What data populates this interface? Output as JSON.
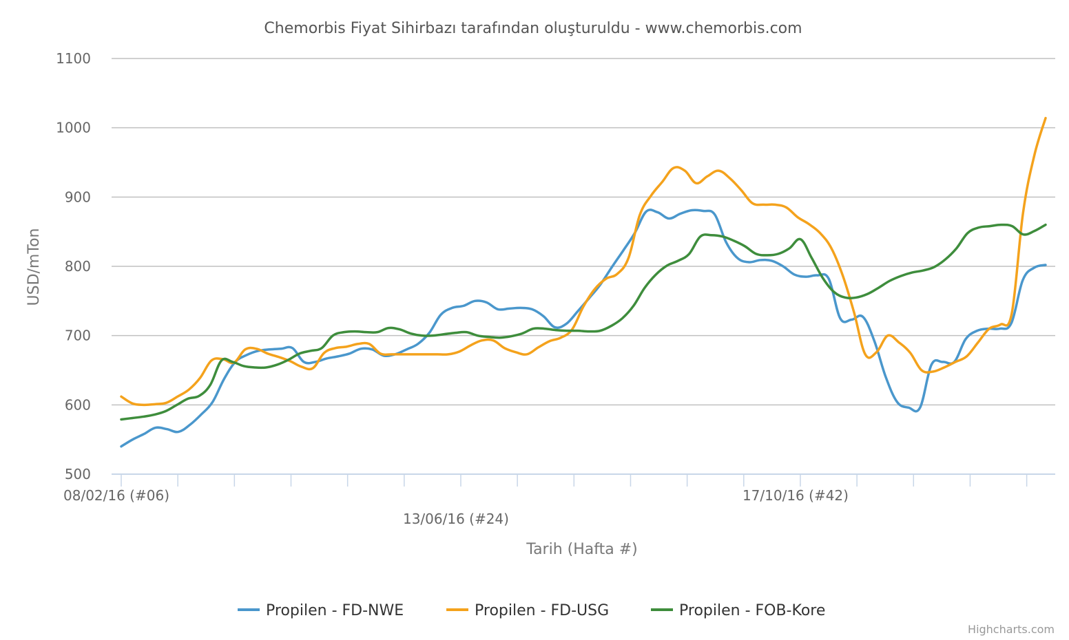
{
  "chart_data": {
    "type": "line",
    "title": "Chemorbis Fiyat Sihirbazı tarafından oluşturuldu - www.chemorbis.com",
    "xlabel": "Tarih (Hafta #)",
    "ylabel": "USD/mTon",
    "ylim": [
      500,
      1100
    ],
    "yticks": [
      "500",
      "600",
      "700",
      "800",
      "900",
      "1000",
      "1100"
    ],
    "grid": true,
    "legend_position": "bottom",
    "credits": "Highcharts.com",
    "x_start_week": 6,
    "x_end_week": 55,
    "x_tick_labels": [
      {
        "week": 6,
        "label": "08/02/16 (#06)",
        "row": 0
      },
      {
        "week": 24,
        "label": "13/06/16 (#24)",
        "row": 1
      },
      {
        "week": 42,
        "label": "17/10/16 (#42)",
        "row": 0
      }
    ],
    "series": [
      {
        "name": "Propilen - FD-NWE",
        "color": "#4a97cc",
        "values": [
          540,
          550,
          558,
          567,
          565,
          561,
          571,
          586,
          604,
          637,
          662,
          672,
          678,
          680,
          681,
          682,
          662,
          662,
          667,
          670,
          674,
          681,
          680,
          671,
          673,
          680,
          688,
          704,
          730,
          740,
          743,
          750,
          748,
          738,
          739,
          740,
          738,
          728,
          712,
          717,
          735,
          754,
          774,
          799,
          823,
          848,
          879,
          878,
          869,
          876,
          881,
          880,
          875,
          835,
          812,
          806,
          809,
          808,
          800,
          788,
          785,
          787,
          782,
          725,
          723,
          727,
          692,
          640,
          604,
          596,
          596,
          658,
          662,
          662,
          695,
          707,
          710,
          710,
          718,
          780,
          798,
          802
        ]
      },
      {
        "name": "Propilen - FD-USG",
        "color": "#f4a21c",
        "values": [
          612,
          602,
          600,
          601,
          603,
          612,
          622,
          639,
          664,
          666,
          661,
          680,
          681,
          674,
          669,
          663,
          655,
          653,
          675,
          682,
          684,
          688,
          688,
          674,
          673,
          673,
          673,
          673,
          673,
          673,
          677,
          686,
          693,
          693,
          682,
          676,
          673,
          683,
          692,
          697,
          709,
          742,
          767,
          782,
          789,
          812,
          874,
          902,
          922,
          942,
          938,
          920,
          930,
          938,
          927,
          910,
          891,
          889,
          889,
          885,
          871,
          861,
          848,
          826,
          787,
          734,
          673,
          676,
          700,
          690,
          675,
          650,
          648,
          654,
          662,
          670,
          690,
          710,
          716,
          732,
          877,
          960,
          1014
        ]
      },
      {
        "name": "Propilen - FOB-Kore",
        "color": "#3e8d3c",
        "values": [
          579,
          581,
          583,
          586,
          591,
          600,
          609,
          613,
          629,
          664,
          662,
          656,
          654,
          654,
          658,
          665,
          674,
          678,
          682,
          700,
          705,
          706,
          705,
          705,
          711,
          709,
          703,
          700,
          700,
          702,
          704,
          705,
          700,
          698,
          697,
          699,
          703,
          710,
          710,
          708,
          707,
          707,
          706,
          707,
          714,
          725,
          743,
          769,
          788,
          801,
          808,
          818,
          843,
          845,
          843,
          837,
          829,
          818,
          816,
          818,
          826,
          839,
          812,
          783,
          763,
          755,
          755,
          760,
          769,
          779,
          786,
          791,
          794,
          799,
          810,
          826,
          848,
          856,
          858,
          860,
          858,
          846,
          851,
          860
        ]
      }
    ]
  }
}
